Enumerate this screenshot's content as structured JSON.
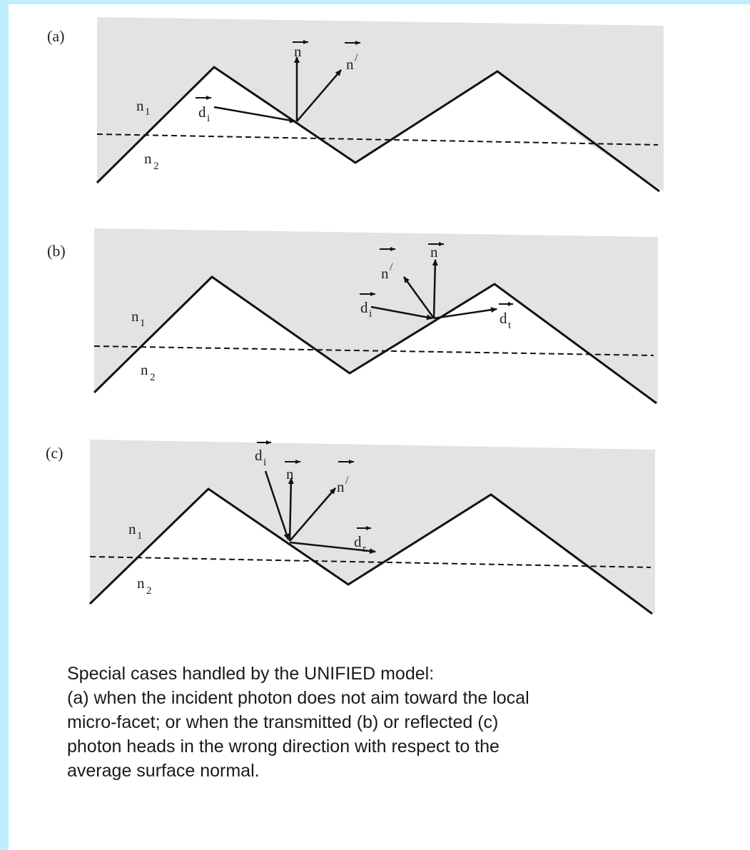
{
  "panels": [
    {
      "label": "(a)",
      "symbols": {
        "n_vec": "n",
        "n_prime": "n",
        "prime_mark": "/",
        "d_i": "d",
        "d_i_sub": "i",
        "n1": "n",
        "n1_sub": "1",
        "n2": "n",
        "n2_sub": "2"
      }
    },
    {
      "label": "(b)",
      "symbols": {
        "n_vec": "n",
        "n_prime": "n",
        "prime_mark": "/",
        "d_i": "d",
        "d_i_sub": "i",
        "d_t": "d",
        "d_t_sub": "t",
        "n1": "n",
        "n1_sub": "1",
        "n2": "n",
        "n2_sub": "2"
      }
    },
    {
      "label": "(c)",
      "symbols": {
        "n_vec": "n",
        "n_prime": "n",
        "prime_mark": "/",
        "d_i": "d",
        "d_i_sub": "i",
        "d_r": "d",
        "d_r_sub": "r",
        "n1": "n",
        "n1_sub": "1",
        "n2": "n",
        "n2_sub": "2"
      }
    }
  ],
  "caption": {
    "lines": [
      "Special cases handled by the UNIFIED model:",
      "(a) when the incident photon does not aim toward the local",
      "micro-facet; or when the transmitted (b) or reflected (c)",
      "photon heads in the wrong direction with respect to the",
      "average surface normal."
    ]
  },
  "colors": {
    "medium_fill": "#e3e3e3",
    "border": "#bfefff",
    "ink": "#111111"
  }
}
